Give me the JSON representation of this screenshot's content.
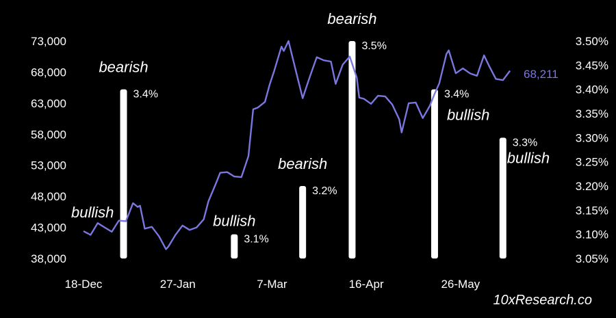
{
  "chart_data": {
    "type": "line",
    "title": "",
    "xlabel": "",
    "ylabel": "",
    "source_label": "10xResearch.co",
    "colors": {
      "background": "#000000",
      "line": "#7b77e0",
      "bar": "#ffffff",
      "text": "#ffffff"
    },
    "x_ticks": [
      "18-Dec",
      "27-Jan",
      "7-Mar",
      "16-Apr",
      "26-May"
    ],
    "x_range": [
      "2023-12-18",
      "2024-06-18"
    ],
    "y_left": {
      "range": [
        38000,
        73000
      ],
      "ticks": [
        "73,000",
        "68,000",
        "63,000",
        "58,000",
        "53,000",
        "48,000",
        "43,000",
        "38,000"
      ]
    },
    "y_right": {
      "range": [
        3.05,
        3.5
      ],
      "ticks": [
        "3.50%",
        "3.45%",
        "3.40%",
        "3.35%",
        "3.30%",
        "3.25%",
        "3.20%",
        "3.15%",
        "3.10%",
        "3.05%"
      ]
    },
    "series": [
      {
        "type": "line",
        "axis": "left",
        "last_value_label": "68,211",
        "x": [
          "2023-12-18",
          "2023-12-21",
          "2023-12-24",
          "2023-12-27",
          "2023-12-30",
          "2024-01-02",
          "2024-01-05",
          "2024-01-08",
          "2024-01-10",
          "2024-01-11",
          "2024-01-13",
          "2024-01-16",
          "2024-01-19",
          "2024-01-22",
          "2024-01-23",
          "2024-01-26",
          "2024-01-29",
          "2024-02-01",
          "2024-02-04",
          "2024-02-07",
          "2024-02-09",
          "2024-02-12",
          "2024-02-14",
          "2024-02-17",
          "2024-02-20",
          "2024-02-23",
          "2024-02-26",
          "2024-02-28",
          "2024-03-01",
          "2024-03-04",
          "2024-03-06",
          "2024-03-08",
          "2024-03-11",
          "2024-03-12",
          "2024-03-14",
          "2024-03-17",
          "2024-03-20",
          "2024-03-23",
          "2024-03-26",
          "2024-03-29",
          "2024-04-01",
          "2024-04-03",
          "2024-04-06",
          "2024-04-09",
          "2024-04-12",
          "2024-04-13",
          "2024-04-15",
          "2024-04-18",
          "2024-04-21",
          "2024-04-24",
          "2024-04-27",
          "2024-04-30",
          "2024-05-01",
          "2024-05-04",
          "2024-05-07",
          "2024-05-10",
          "2024-05-13",
          "2024-05-15",
          "2024-05-17",
          "2024-05-20",
          "2024-05-21",
          "2024-05-24",
          "2024-05-27",
          "2024-05-30",
          "2024-06-02",
          "2024-06-05",
          "2024-06-07",
          "2024-06-10",
          "2024-06-13",
          "2024-06-16"
        ],
        "values": [
          42400,
          41800,
          43700,
          43000,
          42300,
          44100,
          44000,
          46900,
          46300,
          46500,
          42800,
          43100,
          41600,
          39500,
          39900,
          41800,
          43300,
          42600,
          43000,
          44300,
          47200,
          49900,
          51800,
          51900,
          51200,
          51100,
          54500,
          62000,
          62300,
          63200,
          66000,
          68300,
          72100,
          71400,
          73000,
          68400,
          63800,
          67200,
          70400,
          69900,
          69700,
          66100,
          69200,
          70500,
          67100,
          63900,
          63700,
          62900,
          64200,
          64100,
          62800,
          60400,
          58300,
          63000,
          63100,
          60600,
          62600,
          64500,
          66200,
          70900,
          71500,
          67800,
          68600,
          67800,
          67400,
          70700,
          69100,
          66900,
          66700,
          68211
        ]
      }
    ],
    "bars": [
      {
        "date": "2024-01-04",
        "value": 3.4,
        "value_label": "3.4%",
        "annotation": "bearish"
      },
      {
        "date": "2024-02-20",
        "value": 3.1,
        "value_label": "3.1%",
        "annotation": "bullish"
      },
      {
        "date": "2024-03-20",
        "value": 3.2,
        "value_label": "3.2%",
        "annotation": "bearish"
      },
      {
        "date": "2024-04-10",
        "value": 3.5,
        "value_label": "3.5%",
        "annotation": "bearish"
      },
      {
        "date": "2024-05-15",
        "value": 3.4,
        "value_label": "3.4%",
        "annotation": "bullish"
      },
      {
        "date": "2024-06-13",
        "value": 3.3,
        "value_label": "3.3%",
        "annotation": "bullish"
      }
    ],
    "free_annotations": [
      {
        "date": "2023-12-18",
        "value": 45500,
        "text": "bullish"
      }
    ]
  }
}
